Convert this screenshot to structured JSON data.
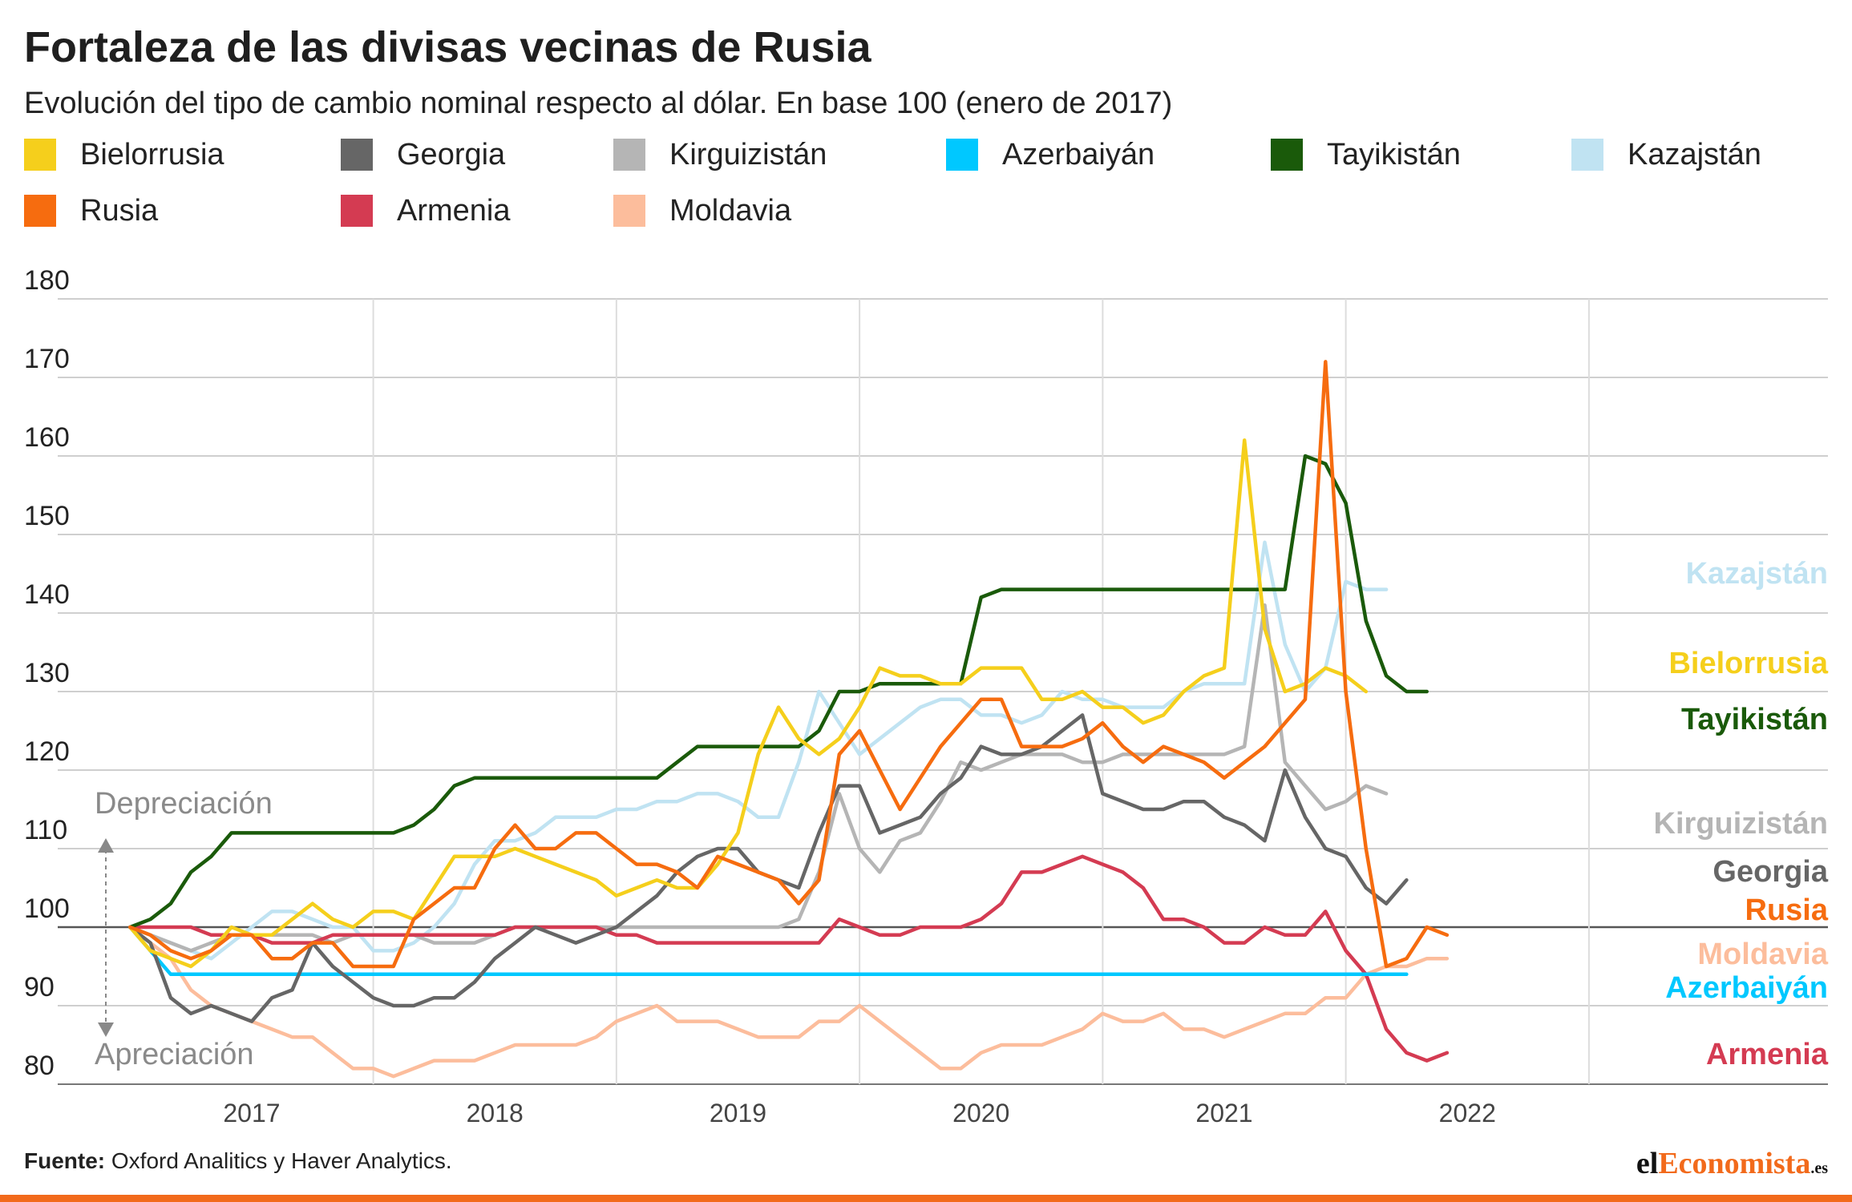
{
  "title": "Fortaleza de las divisas vecinas de Rusia",
  "subtitle": "Evolución del tipo de cambio nominal respecto al dólar. En base 100 (enero de 2017)",
  "source_label": "Fuente:",
  "source_text": " Oxford Analitics y Haver Analytics.",
  "brand": {
    "prefix": "el",
    "accent": "Economista",
    "suffix": ".es"
  },
  "annotations": {
    "up": "Depreciación",
    "down": "Apreciación"
  },
  "chart_data": {
    "type": "line",
    "title": "Fortaleza de las divisas vecinas de Rusia",
    "subtitle": "Evolución del tipo de cambio nominal respecto al dólar. En base 100 (enero de 2017)",
    "xlabel": "",
    "ylabel": "",
    "ylim": [
      80,
      180
    ],
    "yticks": [
      80,
      90,
      100,
      110,
      120,
      130,
      140,
      150,
      160,
      170,
      180
    ],
    "xlim": [
      2016.4,
      2023.45
    ],
    "xticks": [
      2017,
      2018,
      2019,
      2020,
      2021,
      2022
    ],
    "x_start": 2016.5,
    "x_step": 0.08333,
    "baseline": 100,
    "grid": true,
    "legend_placement": "top",
    "series": [
      {
        "name": "Bielorrusia",
        "color": "#f5cf1c",
        "end_label": "Bielorrusia",
        "values": [
          100,
          97,
          96,
          95,
          97,
          100,
          99,
          99,
          101,
          103,
          101,
          100,
          102,
          102,
          101,
          105,
          109,
          109,
          109,
          110,
          109,
          108,
          107,
          106,
          104,
          105,
          106,
          105,
          105,
          108,
          112,
          122,
          128,
          124,
          122,
          124,
          128,
          133,
          132,
          132,
          131,
          131,
          133,
          133,
          133,
          129,
          129,
          130,
          128,
          128,
          126,
          127,
          130,
          132,
          133,
          162,
          138,
          130,
          131,
          133,
          132,
          130
        ]
      },
      {
        "name": "Georgia",
        "color": "#666666",
        "end_label": "Georgia",
        "values": [
          100,
          98,
          91,
          89,
          90,
          89,
          88,
          91,
          92,
          98,
          95,
          93,
          91,
          90,
          90,
          91,
          91,
          93,
          96,
          98,
          100,
          99,
          98,
          99,
          100,
          102,
          104,
          107,
          109,
          110,
          110,
          107,
          106,
          105,
          112,
          118,
          118,
          112,
          113,
          114,
          117,
          119,
          123,
          122,
          122,
          123,
          125,
          127,
          117,
          116,
          115,
          115,
          116,
          116,
          114,
          113,
          111,
          120,
          114,
          110,
          109,
          105,
          103,
          106
        ]
      },
      {
        "name": "Kirguizistán",
        "color": "#b5b5b5",
        "end_label": "Kirguizistán",
        "values": [
          100,
          99,
          98,
          97,
          98,
          99,
          99,
          99,
          99,
          99,
          98,
          99,
          99,
          99,
          99,
          98,
          98,
          98,
          99,
          100,
          100,
          100,
          100,
          100,
          100,
          100,
          100,
          100,
          100,
          100,
          100,
          100,
          100,
          101,
          107,
          117,
          110,
          107,
          111,
          112,
          116,
          121,
          120,
          121,
          122,
          122,
          122,
          121,
          121,
          122,
          122,
          122,
          122,
          122,
          122,
          123,
          141,
          121,
          118,
          115,
          116,
          118,
          117
        ]
      },
      {
        "name": "Azerbaiyán",
        "color": "#00c8ff",
        "end_label": "Azerbaiyán",
        "values": [
          100,
          97,
          94,
          94,
          94,
          94,
          94,
          94,
          94,
          94,
          94,
          94,
          94,
          94,
          94,
          94,
          94,
          94,
          94,
          94,
          94,
          94,
          94,
          94,
          94,
          94,
          94,
          94,
          94,
          94,
          94,
          94,
          94,
          94,
          94,
          94,
          94,
          94,
          94,
          94,
          94,
          94,
          94,
          94,
          94,
          94,
          94,
          94,
          94,
          94,
          94,
          94,
          94,
          94,
          94,
          94,
          94,
          94,
          94,
          94,
          94,
          94,
          94,
          94
        ]
      },
      {
        "name": "Tayikistán",
        "color": "#1a5a0a",
        "end_label": "Tayikistán",
        "values": [
          100,
          101,
          103,
          107,
          109,
          112,
          112,
          112,
          112,
          112,
          112,
          112,
          112,
          112,
          113,
          115,
          118,
          119,
          119,
          119,
          119,
          119,
          119,
          119,
          119,
          119,
          119,
          121,
          123,
          123,
          123,
          123,
          123,
          123,
          125,
          130,
          130,
          131,
          131,
          131,
          131,
          131,
          142,
          143,
          143,
          143,
          143,
          143,
          143,
          143,
          143,
          143,
          143,
          143,
          143,
          143,
          143,
          143,
          160,
          159,
          154,
          139,
          132,
          130,
          130
        ]
      },
      {
        "name": "Kazajstán",
        "color": "#c0e3f2",
        "end_label": "Kazajstán",
        "values": [
          100,
          99,
          98,
          97,
          96,
          98,
          100,
          102,
          102,
          101,
          100,
          100,
          97,
          97,
          98,
          100,
          103,
          108,
          111,
          111,
          112,
          114,
          114,
          114,
          115,
          115,
          116,
          116,
          117,
          117,
          116,
          114,
          114,
          121,
          130,
          126,
          122,
          124,
          126,
          128,
          129,
          129,
          127,
          127,
          126,
          127,
          130,
          129,
          129,
          128,
          128,
          128,
          130,
          131,
          131,
          131,
          149,
          136,
          130,
          133,
          144,
          143,
          143
        ]
      },
      {
        "name": "Rusia",
        "color": "#f66c0f",
        "end_label": "Rusia",
        "values": [
          100,
          99,
          97,
          96,
          97,
          99,
          99,
          96,
          96,
          98,
          98,
          95,
          95,
          95,
          101,
          103,
          105,
          105,
          110,
          113,
          110,
          110,
          112,
          112,
          110,
          108,
          108,
          107,
          105,
          109,
          108,
          107,
          106,
          103,
          106,
          122,
          125,
          120,
          115,
          119,
          123,
          126,
          129,
          129,
          123,
          123,
          123,
          124,
          126,
          123,
          121,
          123,
          122,
          121,
          119,
          121,
          123,
          126,
          129,
          172,
          130,
          110,
          95,
          96,
          100,
          99
        ]
      },
      {
        "name": "Armenia",
        "color": "#d43b52",
        "end_label": "Armenia",
        "values": [
          100,
          100,
          100,
          100,
          99,
          99,
          99,
          98,
          98,
          98,
          99,
          99,
          99,
          99,
          99,
          99,
          99,
          99,
          99,
          100,
          100,
          100,
          100,
          100,
          99,
          99,
          98,
          98,
          98,
          98,
          98,
          98,
          98,
          98,
          98,
          101,
          100,
          99,
          99,
          100,
          100,
          100,
          101,
          103,
          107,
          107,
          108,
          109,
          108,
          107,
          105,
          101,
          101,
          100,
          98,
          98,
          100,
          99,
          99,
          102,
          97,
          94,
          87,
          84,
          83,
          84
        ]
      },
      {
        "name": "Moldavia",
        "color": "#fcbd9c",
        "end_label": "Moldavia",
        "values": [
          100,
          98,
          96,
          92,
          90,
          89,
          88,
          87,
          86,
          86,
          84,
          82,
          82,
          81,
          82,
          83,
          83,
          83,
          84,
          85,
          85,
          85,
          85,
          86,
          88,
          89,
          90,
          88,
          88,
          88,
          87,
          86,
          86,
          86,
          88,
          88,
          90,
          88,
          86,
          84,
          82,
          82,
          84,
          85,
          85,
          85,
          86,
          87,
          89,
          88,
          88,
          89,
          87,
          87,
          86,
          87,
          88,
          89,
          89,
          91,
          91,
          94,
          95,
          95,
          96,
          96
        ]
      }
    ]
  }
}
